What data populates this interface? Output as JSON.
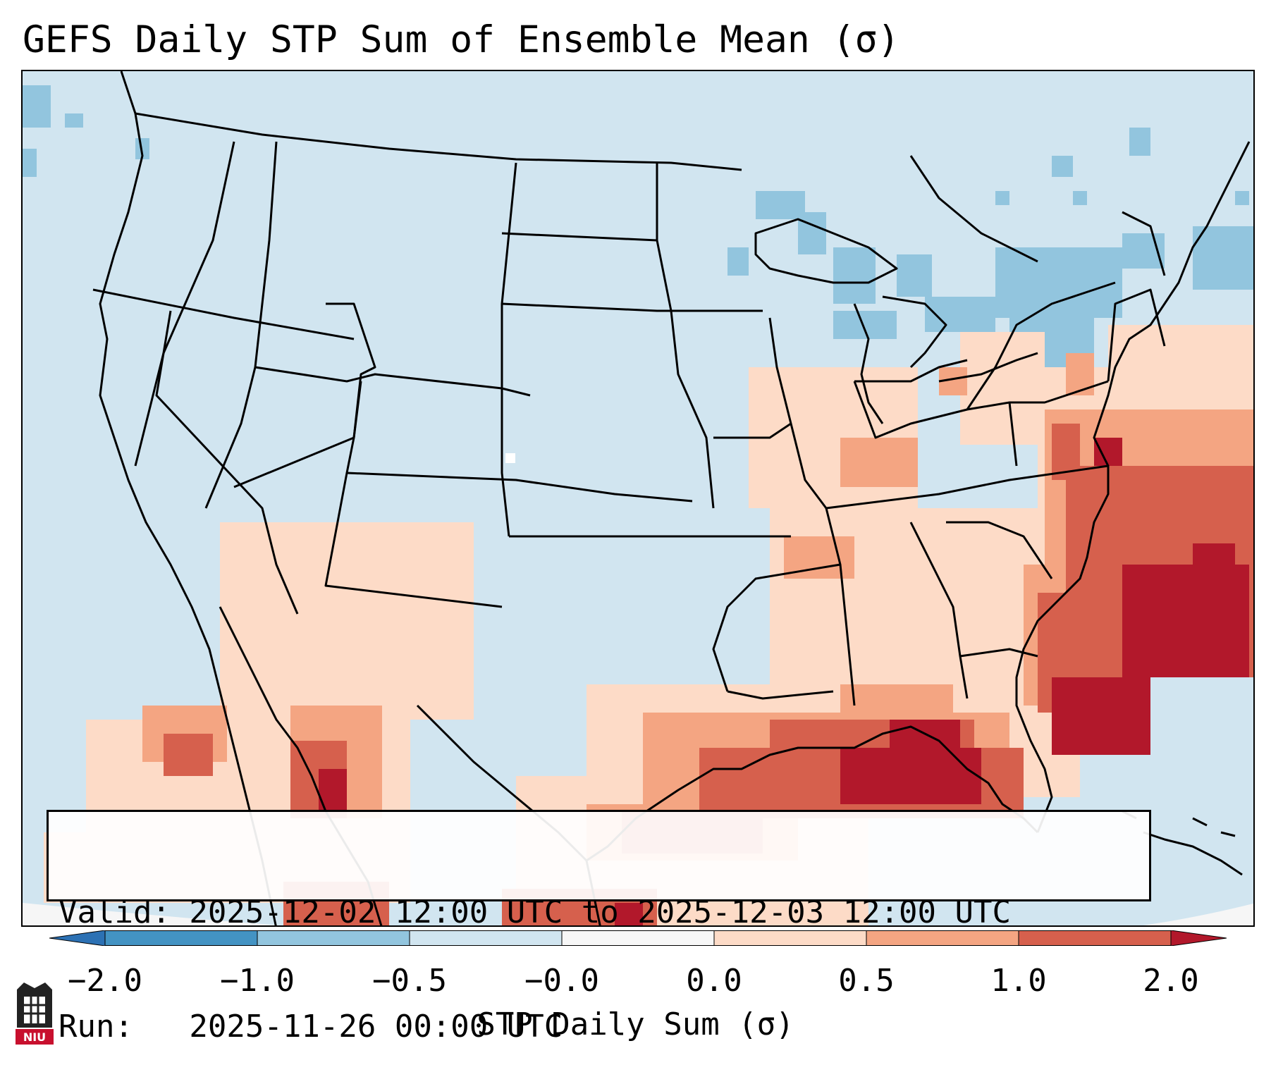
{
  "title": "GEFS Daily STP Sum of Ensemble Mean (σ)",
  "info": {
    "valid_line": "Valid: 2025-12-02 12:00 UTC to 2025-12-03 12:00 UTC",
    "run_line": "Run:   2025-11-26 00:00 UTC"
  },
  "colorbar": {
    "label": "STP Daily Sum (σ)",
    "tick_labels": [
      "−2.0",
      "−1.0",
      "−0.5",
      "−0.0",
      "0.0",
      "0.5",
      "1.0",
      "2.0"
    ],
    "colors": [
      "#2c71b4",
      "#4393c3",
      "#92c5de",
      "#d1e5f0",
      "#f7f7f7",
      "#fddbc7",
      "#f4a582",
      "#d6604d",
      "#b2182b"
    ]
  },
  "map": {
    "background_color": "#d1e5f0",
    "features": [
      "us-state-borders",
      "coastlines",
      "great-lakes",
      "stp-anomaly-shading"
    ]
  },
  "logo": {
    "text": "NIU",
    "color": "#c8102e"
  }
}
